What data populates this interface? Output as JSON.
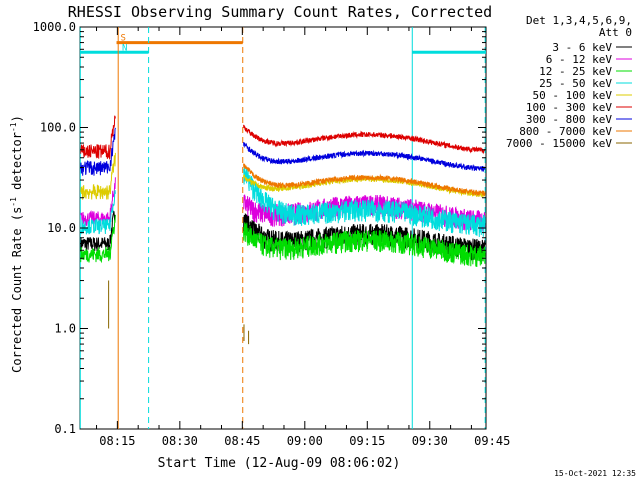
{
  "chart_data": {
    "type": "line",
    "title": "RHESSI Observing Summary Count Rates, Corrected",
    "xlabel": "Start Time (12-Aug-09 08:06:02)",
    "ylabel_main": "Corrected Count Rate (s",
    "ylabel_sup1": "-1",
    "ylabel_mid": " detector",
    "ylabel_sup2": "-1",
    "ylabel_end": ")",
    "yscale": "log",
    "ylim": [
      0.1,
      1000
    ],
    "xlim_min": [
      6.03,
      103.5
    ],
    "xticks": [
      {
        "min": 15,
        "label": "08:15"
      },
      {
        "min": 30,
        "label": "08:30"
      },
      {
        "min": 45,
        "label": "08:45"
      },
      {
        "min": 60,
        "label": "09:00"
      },
      {
        "min": 75,
        "label": "09:15"
      },
      {
        "min": 90,
        "label": "09:30"
      },
      {
        "min": 105,
        "label": "09:45"
      }
    ],
    "yticks": [
      {
        "v": 0.1,
        "label": "0.1"
      },
      {
        "v": 1,
        "label": "1.0"
      },
      {
        "v": 10,
        "label": "10.0"
      },
      {
        "v": 100,
        "label": "100.0"
      },
      {
        "v": 1000,
        "label": "1000.0"
      }
    ],
    "legend_header": [
      "Det 1,3,4,5,6,9,",
      "Att 0"
    ],
    "series": [
      {
        "name": "3 - 6 keV",
        "color": "#000000",
        "pre": 7,
        "post": 7.5,
        "peak": 15
      },
      {
        "name": "6 - 12 keV",
        "color": "#dd00dd",
        "pre": 12.5,
        "post": 14.5,
        "peak": 22
      },
      {
        "name": "12 - 25 keV",
        "color": "#00dd00",
        "pre": 5.5,
        "post": 6.5,
        "peak": 12
      },
      {
        "name": "25 - 50 keV",
        "color": "#00dddd",
        "pre": 10.5,
        "post": 13,
        "peak": 45
      },
      {
        "name": "50 - 100 keV",
        "color": "#ddcc00",
        "pre": 23,
        "post": 26,
        "peak": 40
      },
      {
        "name": "100 - 300 keV",
        "color": "#dd0000",
        "pre": 58,
        "post": 72,
        "peak": 125
      },
      {
        "name": "300 - 800 keV",
        "color": "#0000dd",
        "pre": 40,
        "post": 47,
        "peak": 85
      },
      {
        "name": "800 - 7000 keV",
        "color": "#ee7700",
        "pre": null,
        "post": 27,
        "peak": 52
      },
      {
        "name": "7000 - 15000 keV",
        "color": "#886600",
        "pre": 1.0,
        "post": null,
        "peak": 3
      }
    ],
    "bars": [
      {
        "label": "S",
        "color": "#ee7700",
        "x0": 14.8,
        "x1": 45.1,
        "y": 700
      },
      {
        "label": "N",
        "color": "#00dddd",
        "x0": 6.03,
        "x1": 22.5,
        "y": 560
      },
      {
        "label": "",
        "color": "#00dddd",
        "x0": 85.8,
        "x1": 103.5,
        "y": 560
      }
    ],
    "vlines": [
      {
        "x": 6.1,
        "color": "#00dddd",
        "dashed": false
      },
      {
        "x": 15.2,
        "color": "#ee7700",
        "dashed": false
      },
      {
        "x": 22.5,
        "color": "#00dddd",
        "dashed": true
      },
      {
        "x": 45.1,
        "color": "#ee7700",
        "dashed": true
      },
      {
        "x": 85.8,
        "color": "#00dddd",
        "dashed": false
      },
      {
        "x": 103.3,
        "color": "#00dddd",
        "dashed": true
      }
    ],
    "footer": "15-Oct-2021 12:35"
  }
}
